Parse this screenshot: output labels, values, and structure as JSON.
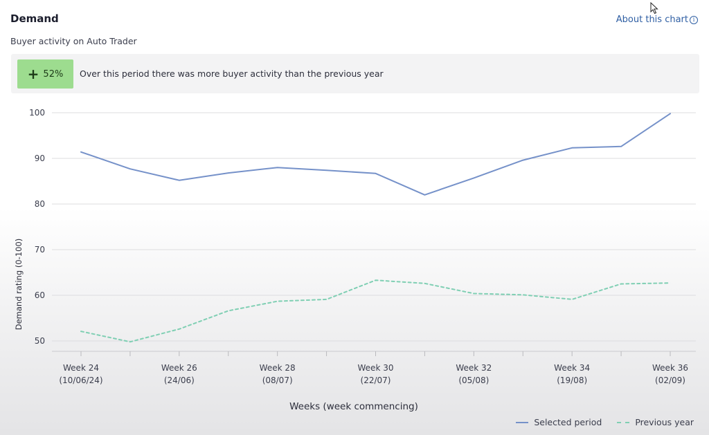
{
  "header": {
    "title": "Demand",
    "subtitle": "Buyer activity on Auto Trader",
    "about_link": "About this chart",
    "info_icon": "info-icon"
  },
  "summary": {
    "badge_value": "52%",
    "badge_sign": "+",
    "text": "Over this period there was more buyer activity than the previous year",
    "badge_color": "#9ddc8f"
  },
  "chart_data": {
    "type": "line",
    "title": "",
    "xlabel": "Weeks (week commencing)",
    "ylabel": "Demand rating (0-100)",
    "ylim": [
      47,
      101
    ],
    "yticks": [
      50,
      60,
      70,
      80,
      90,
      100
    ],
    "grid": true,
    "legend_position": "bottom-right",
    "x_ticks": [
      {
        "week": "Week 24",
        "date": "(10/06/24)"
      },
      {
        "week": "Week 26",
        "date": "(24/06)"
      },
      {
        "week": "Week 28",
        "date": "(08/07)"
      },
      {
        "week": "Week 30",
        "date": "(22/07)"
      },
      {
        "week": "Week 32",
        "date": "(05/08)"
      },
      {
        "week": "Week 34",
        "date": "(19/08)"
      },
      {
        "week": "Week 36",
        "date": "(02/09)"
      }
    ],
    "x": [
      24,
      25,
      26,
      27,
      28,
      29,
      30,
      31,
      32,
      33,
      34,
      35,
      36
    ],
    "series": [
      {
        "name": "Selected period",
        "color": "#7591c9",
        "style": "solid",
        "values": [
          91.4,
          87.7,
          85.2,
          86.8,
          88.0,
          87.4,
          86.7,
          82.0,
          85.7,
          89.6,
          92.3,
          92.6,
          99.8
        ]
      },
      {
        "name": "Previous year",
        "color": "#7fcfb3",
        "style": "dashed",
        "values": [
          52.1,
          49.8,
          52.6,
          56.6,
          58.7,
          59.1,
          63.3,
          62.6,
          60.4,
          60.1,
          59.1,
          62.5,
          62.7
        ]
      }
    ]
  }
}
